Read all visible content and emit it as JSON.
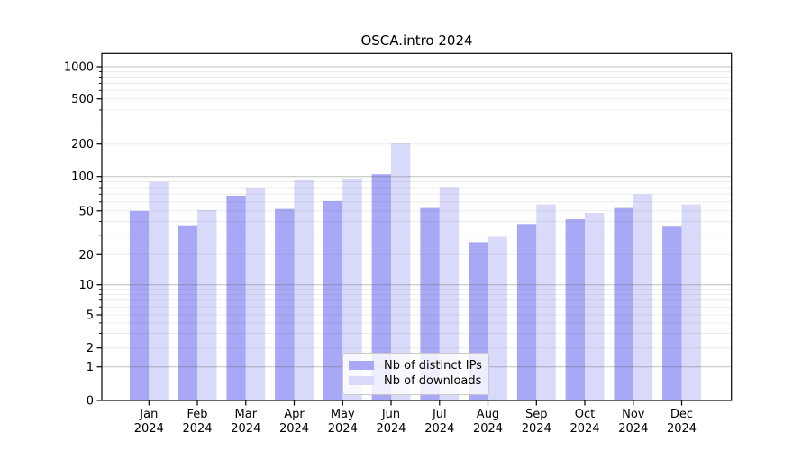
{
  "title": "OSCA.intro 2024",
  "chart_data": {
    "type": "bar",
    "title": "OSCA.intro 2024",
    "categories": [
      "Jan",
      "Feb",
      "Mar",
      "Apr",
      "May",
      "Jun",
      "Jul",
      "Aug",
      "Sep",
      "Oct",
      "Nov",
      "Dec"
    ],
    "x_year_label": "2024",
    "series": [
      {
        "name": "Nb of distinct IPs",
        "color": "#a8a8f6",
        "values": [
          50,
          37,
          68,
          52,
          61,
          105,
          53,
          26,
          38,
          42,
          53,
          36
        ]
      },
      {
        "name": "Nb of downloads",
        "color": "#d9d9f9",
        "values": [
          90,
          51,
          80,
          93,
          96,
          205,
          81,
          29,
          57,
          48,
          70,
          57
        ]
      }
    ],
    "yscale": "log (symlog-like, 0 shown at baseline)",
    "yticks": [
      0,
      1,
      2,
      5,
      10,
      20,
      50,
      100,
      200,
      500,
      1000
    ],
    "minor_yticks": [
      3,
      4,
      6,
      7,
      8,
      9,
      30,
      40,
      60,
      70,
      80,
      90,
      300,
      400,
      600,
      700,
      800,
      900
    ],
    "ylim": [
      0,
      1400
    ],
    "grid": "horizontal, major at decades darker, minor faint, drawn over bars",
    "legend_position": "inside bottom-center",
    "axis_color": "#000000",
    "major_grid_color": "rgba(96,96,96,0.40)",
    "minor_grid_color": "rgba(96,96,96,0.12)"
  }
}
